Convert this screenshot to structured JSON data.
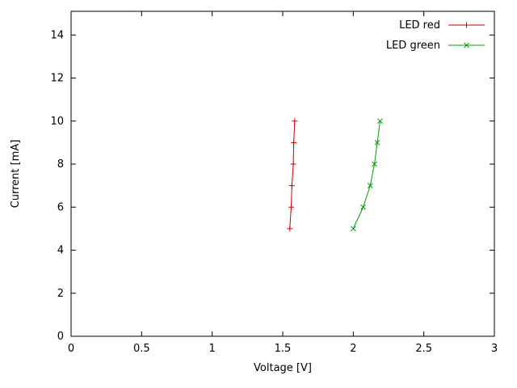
{
  "figure": {
    "background": "#ffffff",
    "border_color": "#000000",
    "text_color": "#000000"
  },
  "chart_data": {
    "type": "line",
    "title": "",
    "xlabel": "Voltage [V]",
    "ylabel": "Current [mA]",
    "xlim": [
      0,
      3
    ],
    "ylim": [
      0,
      15.1
    ],
    "grid": false,
    "legend_position": "top-right",
    "xticks": {
      "values": [
        0,
        0.5,
        1,
        1.5,
        2,
        2.5,
        3
      ],
      "labels": [
        "0",
        "0.5",
        "1",
        "1.5",
        "2",
        "2.5",
        "3"
      ]
    },
    "yticks": {
      "values": [
        0,
        2,
        4,
        6,
        8,
        10,
        12,
        14
      ],
      "labels": [
        "0",
        "2",
        "4",
        "6",
        "8",
        "10",
        "12",
        "14"
      ]
    },
    "series": [
      {
        "name": "LED red",
        "color": "#cc0000",
        "marker": "plus",
        "points": [
          [
            1.55,
            5
          ],
          [
            1.56,
            6
          ],
          [
            1.565,
            7
          ],
          [
            1.575,
            8
          ],
          [
            1.578,
            9
          ],
          [
            1.585,
            10
          ]
        ]
      },
      {
        "name": "LED green",
        "color": "#00a000",
        "marker": "cross",
        "points": [
          [
            2.0,
            5
          ],
          [
            2.07,
            6
          ],
          [
            2.12,
            7
          ],
          [
            2.15,
            8
          ],
          [
            2.17,
            9
          ],
          [
            2.19,
            10
          ]
        ]
      }
    ]
  }
}
